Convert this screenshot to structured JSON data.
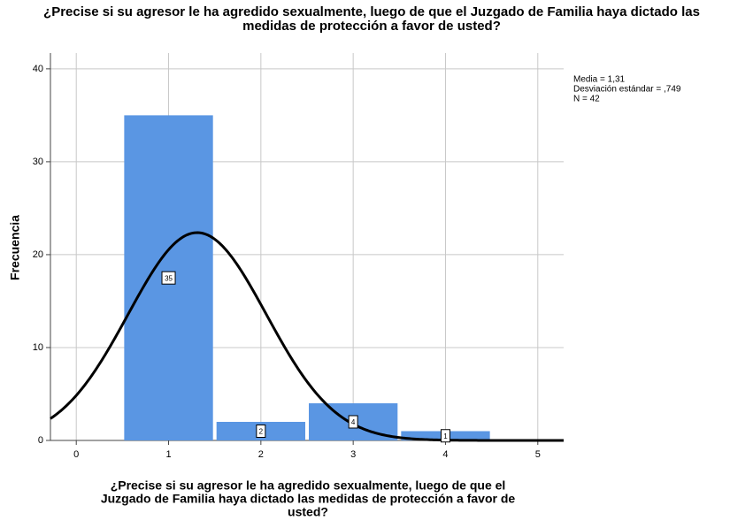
{
  "chart_data": {
    "type": "histogram",
    "title": [
      "¿Precise si su agresor le ha agredido sexualmente, luego de que el Juzgado de Familia haya dictado las",
      "medidas de protección a favor de usted?"
    ],
    "x_label": [
      "¿Precise si su agresor le ha agredido sexualmente, luego de que el",
      "Juzgado de Familia haya dictado las medidas de protección a favor de",
      "usted?"
    ],
    "y_label": "Frecuencia",
    "bins": [
      0.5,
      1.5,
      2.5,
      3.5,
      4.5
    ],
    "values": [
      35,
      2,
      4,
      1
    ],
    "color": "#5a96e3",
    "xlim": [
      -0.28,
      5.28
    ],
    "xticks": [
      0,
      1,
      2,
      3,
      4,
      5
    ],
    "ylim": [
      0,
      41.7
    ],
    "yticks": [
      0,
      10,
      20,
      30,
      40
    ],
    "grid": true,
    "stats_text": [
      "Media = 1,31",
      "Desviación estándar = ,749",
      "N = 42"
    ],
    "normal_curve": {
      "mean": 1.31,
      "sd": 0.749,
      "n": 42,
      "color": "#000000"
    }
  }
}
